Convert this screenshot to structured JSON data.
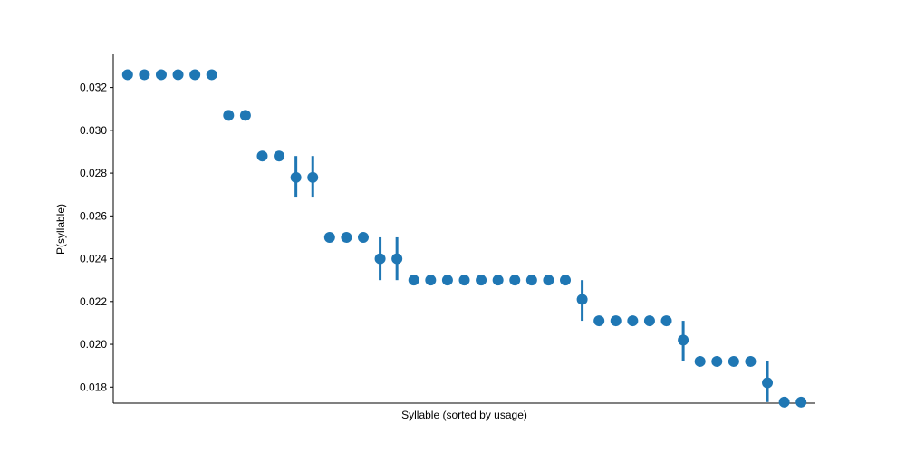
{
  "chart_data": {
    "type": "scatter",
    "title": "",
    "xlabel": "Syllable (sorted by usage)",
    "ylabel": "P(syllable)",
    "ylim": [
      0.01725,
      0.03355
    ],
    "yticks": [
      0.018,
      0.02,
      0.022,
      0.024,
      0.026,
      0.028,
      0.03,
      0.032
    ],
    "ytick_labels": [
      "0.018",
      "0.020",
      "0.022",
      "0.024",
      "0.026",
      "0.028",
      "0.030",
      "0.032"
    ],
    "x_ticks_shown": false,
    "grid": false,
    "legend": false,
    "color": "#1f77b4",
    "points": [
      {
        "x": 1,
        "y": 0.0326
      },
      {
        "x": 2,
        "y": 0.0326
      },
      {
        "x": 3,
        "y": 0.0326
      },
      {
        "x": 4,
        "y": 0.0326
      },
      {
        "x": 5,
        "y": 0.0326
      },
      {
        "x": 6,
        "y": 0.0326
      },
      {
        "x": 7,
        "y": 0.0307
      },
      {
        "x": 8,
        "y": 0.0307
      },
      {
        "x": 9,
        "y": 0.0288
      },
      {
        "x": 10,
        "y": 0.0288
      },
      {
        "x": 11,
        "y": 0.0278,
        "err_low": 0.0269,
        "err_high": 0.0288
      },
      {
        "x": 12,
        "y": 0.0278,
        "err_low": 0.0269,
        "err_high": 0.0288
      },
      {
        "x": 13,
        "y": 0.025
      },
      {
        "x": 14,
        "y": 0.025
      },
      {
        "x": 15,
        "y": 0.025
      },
      {
        "x": 16,
        "y": 0.024,
        "err_low": 0.023,
        "err_high": 0.025
      },
      {
        "x": 17,
        "y": 0.024,
        "err_low": 0.023,
        "err_high": 0.025
      },
      {
        "x": 18,
        "y": 0.023
      },
      {
        "x": 19,
        "y": 0.023
      },
      {
        "x": 20,
        "y": 0.023
      },
      {
        "x": 21,
        "y": 0.023
      },
      {
        "x": 22,
        "y": 0.023
      },
      {
        "x": 23,
        "y": 0.023
      },
      {
        "x": 24,
        "y": 0.023
      },
      {
        "x": 25,
        "y": 0.023
      },
      {
        "x": 26,
        "y": 0.023
      },
      {
        "x": 27,
        "y": 0.023
      },
      {
        "x": 28,
        "y": 0.0221,
        "err_low": 0.0211,
        "err_high": 0.023
      },
      {
        "x": 29,
        "y": 0.0211
      },
      {
        "x": 30,
        "y": 0.0211
      },
      {
        "x": 31,
        "y": 0.0211
      },
      {
        "x": 32,
        "y": 0.0211
      },
      {
        "x": 33,
        "y": 0.0211
      },
      {
        "x": 34,
        "y": 0.0202,
        "err_low": 0.0192,
        "err_high": 0.0211
      },
      {
        "x": 35,
        "y": 0.0192
      },
      {
        "x": 36,
        "y": 0.0192
      },
      {
        "x": 37,
        "y": 0.0192
      },
      {
        "x": 38,
        "y": 0.0192
      },
      {
        "x": 39,
        "y": 0.0182,
        "err_low": 0.0173,
        "err_high": 0.0192
      },
      {
        "x": 40,
        "y": 0.0173
      },
      {
        "x": 41,
        "y": 0.0173
      }
    ]
  }
}
